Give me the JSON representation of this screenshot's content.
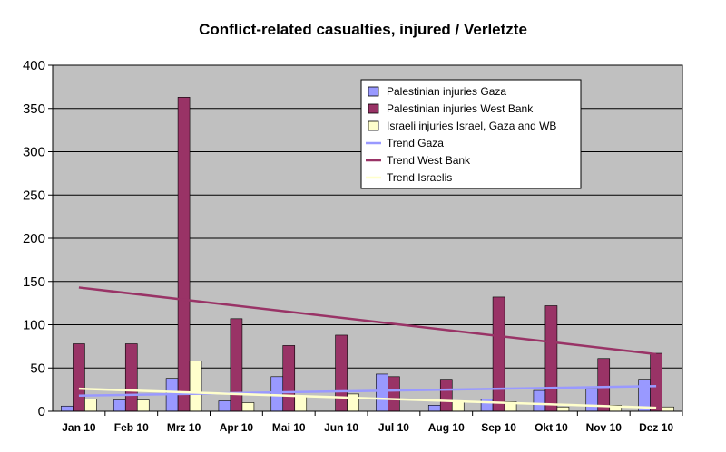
{
  "chart_data": {
    "type": "bar",
    "title": "Conflict-related casualties, injured / Verletzte",
    "xlabel": "",
    "ylabel": "",
    "ylim": [
      0,
      400
    ],
    "yticks": [
      0,
      50,
      100,
      150,
      200,
      250,
      300,
      350,
      400
    ],
    "grid": true,
    "legend_position": "top-right",
    "categories": [
      "Jan 10",
      "Feb 10",
      "Mrz 10",
      "Apr 10",
      "Mai 10",
      "Jun 10",
      "Jul 10",
      "Aug 10",
      "Sep 10",
      "Okt 10",
      "Nov 10",
      "Dez 10"
    ],
    "series": [
      {
        "name": "Palestinian injuries Gaza",
        "color": "#9999ff",
        "values": [
          6,
          13,
          38,
          12,
          40,
          0,
          43,
          7,
          14,
          24,
          26,
          37
        ]
      },
      {
        "name": "Palestinian injuries West Bank",
        "color": "#993366",
        "values": [
          78,
          78,
          363,
          107,
          76,
          88,
          40,
          37,
          132,
          122,
          61,
          67
        ]
      },
      {
        "name": "Israeli injuries Israel, Gaza and WB",
        "color": "#ffffcc",
        "values": [
          14,
          13,
          58,
          10,
          18,
          20,
          0,
          12,
          11,
          5,
          7,
          5
        ]
      }
    ],
    "trends": [
      {
        "name": "Trend Gaza",
        "color": "#9999ff",
        "start": 18,
        "end": 29
      },
      {
        "name": "Trend West Bank",
        "color": "#993366",
        "start": 143,
        "end": 66
      },
      {
        "name": "Trend Israelis",
        "color": "#ffffcc",
        "start": 26,
        "end": 4
      }
    ],
    "colors": {
      "plot_background": "#c0c0c0",
      "gridline": "#000000"
    }
  }
}
